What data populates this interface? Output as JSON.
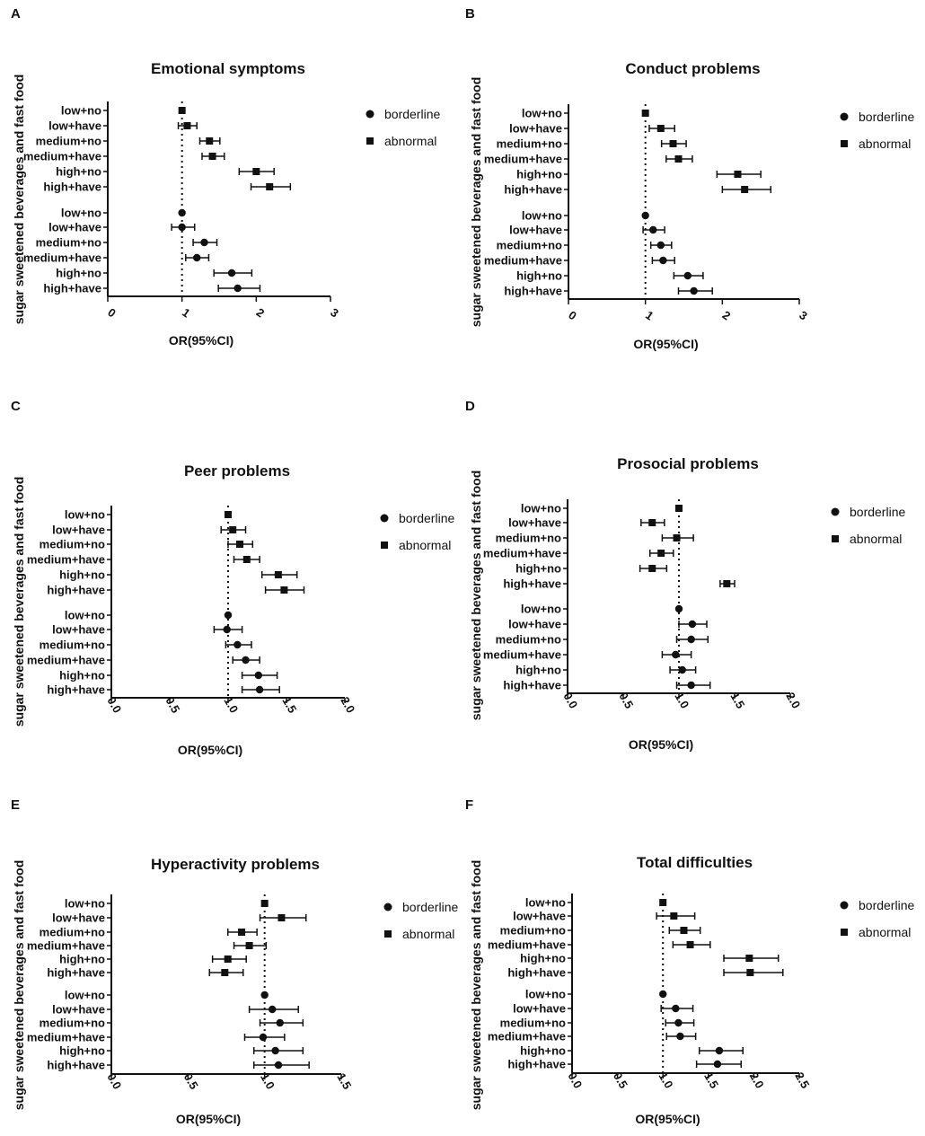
{
  "chart_data": [
    {
      "panel": "A",
      "type": "forest",
      "title": "Emotional symptoms",
      "xlabel": "OR(95%CI)",
      "ylabel": "sugar sweetened beverages and fast food",
      "xlim": [
        0,
        3
      ],
      "ticks": [
        "0",
        "1",
        "2",
        "3"
      ],
      "ref_line": 1,
      "legend": [
        "borderline",
        "abnormal"
      ],
      "categories": [
        "low+no",
        "low+have",
        "medium+no",
        "medium+have",
        "high+no",
        "high+have"
      ],
      "abnormal": [
        [
          1.0,
          1.0,
          1.0
        ],
        [
          1.07,
          0.95,
          1.2
        ],
        [
          1.37,
          1.24,
          1.51
        ],
        [
          1.41,
          1.27,
          1.57
        ],
        [
          2.0,
          1.77,
          2.24
        ],
        [
          2.18,
          1.93,
          2.46
        ]
      ],
      "borderline": [
        [
          1.0,
          1.0,
          1.0
        ],
        [
          1.0,
          0.86,
          1.17
        ],
        [
          1.3,
          1.15,
          1.47
        ],
        [
          1.2,
          1.05,
          1.36
        ],
        [
          1.67,
          1.43,
          1.94
        ],
        [
          1.75,
          1.49,
          2.05
        ]
      ]
    },
    {
      "panel": "B",
      "type": "forest",
      "title": "Conduct problems",
      "xlabel": "OR(95%CI)",
      "ylabel": "sugar sweetened beverages and fast food",
      "xlim": [
        0,
        3
      ],
      "ticks": [
        "0",
        "1",
        "2",
        "3"
      ],
      "ref_line": 1,
      "legend": [
        "borderline",
        "abnormal"
      ],
      "categories": [
        "low+no",
        "low+have",
        "medium+no",
        "medium+have",
        "high+no",
        "high+have"
      ],
      "abnormal": [
        [
          1.0,
          1.0,
          1.0
        ],
        [
          1.2,
          1.05,
          1.38
        ],
        [
          1.36,
          1.21,
          1.53
        ],
        [
          1.43,
          1.27,
          1.61
        ],
        [
          2.2,
          1.93,
          2.5
        ],
        [
          2.29,
          2.0,
          2.63
        ]
      ],
      "borderline": [
        [
          1.0,
          1.0,
          1.0
        ],
        [
          1.1,
          0.97,
          1.25
        ],
        [
          1.2,
          1.07,
          1.34
        ],
        [
          1.23,
          1.09,
          1.38
        ],
        [
          1.55,
          1.37,
          1.75
        ],
        [
          1.63,
          1.43,
          1.87
        ]
      ]
    },
    {
      "panel": "C",
      "type": "forest",
      "title": "Peer problems",
      "xlabel": "OR(95%CI)",
      "ylabel": "sugar sweetened beverages and fast food",
      "xlim": [
        0,
        2
      ],
      "ticks": [
        "0.0",
        "0.5",
        "1.0",
        "1.5",
        "2.0"
      ],
      "ref_line": 1,
      "legend": [
        "borderline",
        "abnormal"
      ],
      "categories": [
        "low+no",
        "low+have",
        "medium+no",
        "medium+have",
        "high+no",
        "high+have"
      ],
      "abnormal": [
        [
          1.0,
          1.0,
          1.0
        ],
        [
          1.04,
          0.94,
          1.15
        ],
        [
          1.1,
          1.0,
          1.21
        ],
        [
          1.16,
          1.05,
          1.27
        ],
        [
          1.43,
          1.29,
          1.59
        ],
        [
          1.48,
          1.32,
          1.65
        ]
      ],
      "borderline": [
        [
          1.0,
          1.0,
          1.0
        ],
        [
          0.99,
          0.88,
          1.12
        ],
        [
          1.08,
          0.98,
          1.2
        ],
        [
          1.15,
          1.04,
          1.27
        ],
        [
          1.26,
          1.12,
          1.42
        ],
        [
          1.27,
          1.12,
          1.44
        ]
      ]
    },
    {
      "panel": "D",
      "type": "forest",
      "title": "Prosocial problems",
      "xlabel": "OR(95%CI)",
      "ylabel": "sugar sweetened beverages and fast food",
      "xlim": [
        0,
        2
      ],
      "ticks": [
        "0.0",
        "0.5",
        "1.0",
        "1.5",
        "2.0"
      ],
      "ref_line": 1,
      "legend": [
        "borderline",
        "abnormal"
      ],
      "categories": [
        "low+no",
        "low+have",
        "medium+no",
        "medium+have",
        "high+no",
        "high+have"
      ],
      "abnormal": [
        [
          1.0,
          1.0,
          1.0
        ],
        [
          0.76,
          0.66,
          0.87
        ],
        [
          0.98,
          0.85,
          1.13
        ],
        [
          0.84,
          0.74,
          0.95
        ],
        [
          0.76,
          0.65,
          0.89
        ],
        [
          1.43,
          1.37,
          1.5
        ]
      ],
      "borderline": [
        [
          1.0,
          1.0,
          1.0
        ],
        [
          1.12,
          1.0,
          1.25
        ],
        [
          1.11,
          0.98,
          1.26
        ],
        [
          0.97,
          0.85,
          1.11
        ],
        [
          1.03,
          0.92,
          1.15
        ],
        [
          1.11,
          0.98,
          1.28
        ]
      ]
    },
    {
      "panel": "E",
      "type": "forest",
      "title": "Hyperactivity problems",
      "xlabel": "OR(95%CI)",
      "ylabel": "sugar sweetened beverages and fast food",
      "xlim": [
        0,
        1.5
      ],
      "ticks": [
        "0.0",
        "0.5",
        "1.0",
        "1.5"
      ],
      "ref_line": 1,
      "legend": [
        "borderline",
        "abnormal"
      ],
      "categories": [
        "low+no",
        "low+have",
        "medium+no",
        "medium+have",
        "high+no",
        "high+have"
      ],
      "abnormal": [
        [
          1.0,
          1.0,
          1.0
        ],
        [
          1.11,
          0.97,
          1.27
        ],
        [
          0.85,
          0.76,
          0.95
        ],
        [
          0.9,
          0.8,
          1.01
        ],
        [
          0.76,
          0.66,
          0.88
        ],
        [
          0.74,
          0.64,
          0.86
        ]
      ],
      "borderline": [
        [
          1.0,
          1.0,
          1.0
        ],
        [
          1.05,
          0.9,
          1.22
        ],
        [
          1.1,
          0.97,
          1.25
        ],
        [
          0.99,
          0.87,
          1.13
        ],
        [
          1.07,
          0.93,
          1.25
        ],
        [
          1.09,
          0.93,
          1.29
        ]
      ]
    },
    {
      "panel": "F",
      "type": "forest",
      "title": "Total difficulties",
      "xlabel": "OR(95%CI)",
      "ylabel": "sugar sweetened beverages and fast food",
      "xlim": [
        0,
        2.5
      ],
      "ticks": [
        "0.0",
        "0.5",
        "1.0",
        "1.5",
        "2.0",
        "2.5"
      ],
      "ref_line": 1,
      "legend": [
        "borderline",
        "abnormal"
      ],
      "categories": [
        "low+no",
        "low+have",
        "medium+no",
        "medium+have",
        "high+no",
        "high+have"
      ],
      "abnormal": [
        [
          1.0,
          1.0,
          1.0
        ],
        [
          1.12,
          0.93,
          1.35
        ],
        [
          1.23,
          1.07,
          1.41
        ],
        [
          1.3,
          1.11,
          1.52
        ],
        [
          1.95,
          1.67,
          2.27
        ],
        [
          1.96,
          1.67,
          2.32
        ]
      ],
      "borderline": [
        [
          1.0,
          1.0,
          1.0
        ],
        [
          1.14,
          0.98,
          1.33
        ],
        [
          1.17,
          1.03,
          1.34
        ],
        [
          1.19,
          1.04,
          1.36
        ],
        [
          1.62,
          1.4,
          1.88
        ],
        [
          1.6,
          1.37,
          1.86
        ]
      ]
    }
  ]
}
